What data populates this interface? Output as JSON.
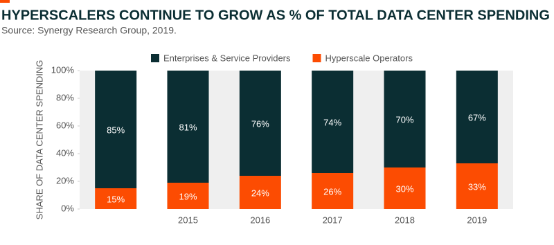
{
  "chart_data": {
    "type": "stacked-bar",
    "title": "HYPERSCALERS CONTINUE TO GROW AS % OF TOTAL DATA CENTER SPENDING",
    "subtitle": "Source: Synergy Research Group, 2019.",
    "y_label": "SHARE OF DATA CENTER SPENDING",
    "categories": [
      null,
      "2015",
      "2016",
      "2017",
      "2018",
      "2019"
    ],
    "series": [
      {
        "name": "Enterprises & Service Providers",
        "color": "#0b2e33",
        "values": [
          85,
          81,
          76,
          74,
          70,
          67
        ],
        "value_labels": [
          "85%",
          "81%",
          "76%",
          "74%",
          "70%",
          "67%"
        ]
      },
      {
        "name": "Hyperscale Operators",
        "color": "#fc4c02",
        "values": [
          15,
          19,
          24,
          26,
          30,
          33
        ],
        "value_labels": [
          "15%",
          "19%",
          "24%",
          "26%",
          "30%",
          "33%"
        ]
      }
    ],
    "ylim": [
      0,
      100
    ],
    "yticks": [
      {
        "value": 0,
        "label": "0%"
      },
      {
        "value": 20,
        "label": "20%"
      },
      {
        "value": 40,
        "label": "40%"
      },
      {
        "value": 60,
        "label": "60%"
      },
      {
        "value": 80,
        "label": "80%"
      },
      {
        "value": 100,
        "label": "100%"
      }
    ],
    "legend": "top"
  }
}
